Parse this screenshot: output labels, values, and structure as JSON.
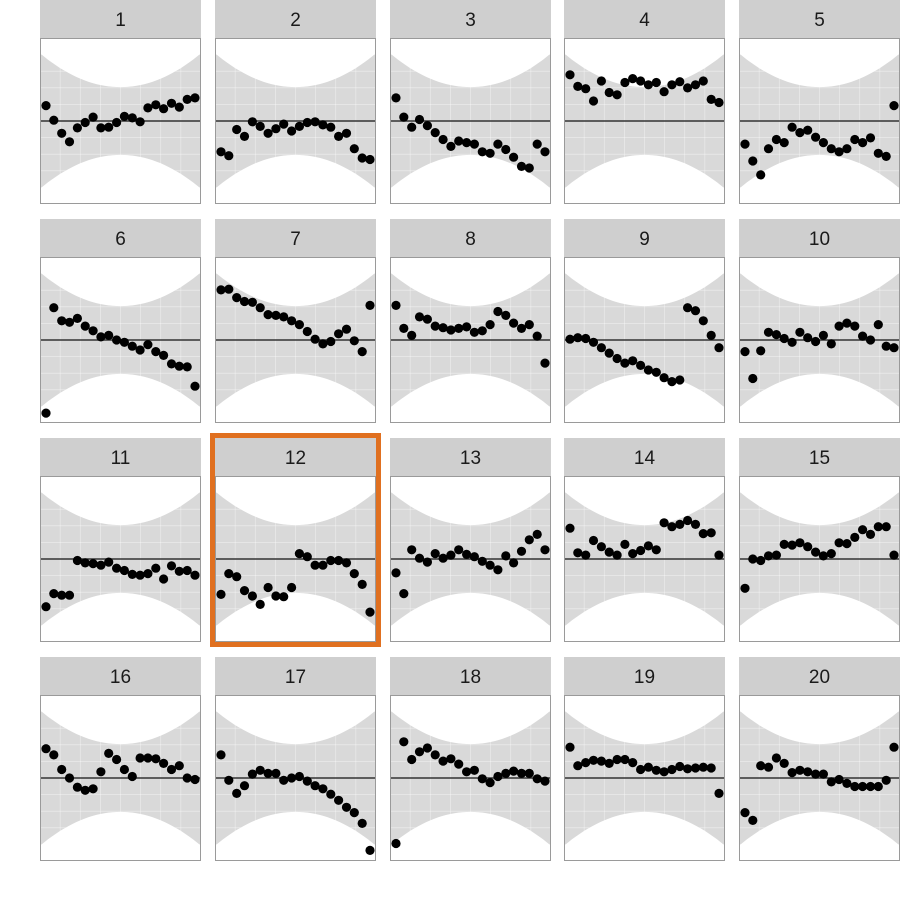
{
  "colors": {
    "strip": "#cfcfcf",
    "band": "#d9d9d9",
    "grid": "#ebebeb",
    "point": "#000000",
    "highlight": "#e07020"
  },
  "chart_data": {
    "type": "scatter",
    "layout": "facet-grid 4 rows x 5 columns",
    "highlighted_panel": "12",
    "grid": true,
    "reference_line": 0,
    "ylim": [
      -1,
      1
    ],
    "panels": [
      {
        "label": "1",
        "x": [
          0,
          1,
          2,
          3,
          4,
          5,
          6,
          7,
          8,
          9,
          10,
          11,
          12,
          13,
          14,
          15,
          16,
          17,
          18,
          19
        ],
        "y": [
          0.2,
          0.01,
          -0.16,
          -0.27,
          -0.09,
          -0.02,
          0.05,
          -0.09,
          -0.08,
          -0.02,
          0.06,
          0.04,
          -0.01,
          0.17,
          0.21,
          0.16,
          0.23,
          0.18,
          0.28,
          0.3
        ]
      },
      {
        "label": "2",
        "x": [
          0,
          1,
          2,
          3,
          4,
          5,
          6,
          7,
          8,
          9,
          10,
          11,
          12,
          13,
          14,
          15,
          16,
          17,
          18,
          19
        ],
        "y": [
          -0.4,
          -0.45,
          -0.11,
          -0.2,
          -0.01,
          -0.07,
          -0.16,
          -0.1,
          -0.04,
          -0.13,
          -0.07,
          -0.02,
          -0.01,
          -0.05,
          -0.08,
          -0.2,
          -0.16,
          -0.36,
          -0.48,
          -0.5
        ]
      },
      {
        "label": "3",
        "x": [
          0,
          1,
          2,
          3,
          4,
          5,
          6,
          7,
          8,
          9,
          10,
          11,
          12,
          13,
          14,
          15,
          16,
          17,
          18,
          19
        ],
        "y": [
          0.3,
          0.05,
          -0.08,
          0.02,
          -0.06,
          -0.15,
          -0.24,
          -0.33,
          -0.26,
          -0.28,
          -0.3,
          -0.4,
          -0.42,
          -0.3,
          -0.37,
          -0.47,
          -0.59,
          -0.61,
          -0.3,
          -0.4
        ]
      },
      {
        "label": "4",
        "x": [
          0,
          1,
          2,
          3,
          4,
          5,
          6,
          7,
          8,
          9,
          10,
          11,
          12,
          13,
          14,
          15,
          16,
          17,
          18,
          19
        ],
        "y": [
          0.6,
          0.45,
          0.42,
          0.26,
          0.52,
          0.37,
          0.34,
          0.5,
          0.55,
          0.52,
          0.47,
          0.5,
          0.38,
          0.47,
          0.51,
          0.43,
          0.47,
          0.52,
          0.28,
          0.24
        ]
      },
      {
        "label": "5",
        "x": [
          0,
          1,
          2,
          3,
          4,
          5,
          6,
          7,
          8,
          9,
          10,
          11,
          12,
          13,
          14,
          15,
          16,
          17,
          18,
          19
        ],
        "y": [
          -0.3,
          -0.52,
          -0.7,
          -0.36,
          -0.24,
          -0.28,
          -0.08,
          -0.15,
          -0.12,
          -0.21,
          -0.28,
          -0.36,
          -0.4,
          -0.36,
          -0.24,
          -0.28,
          -0.22,
          -0.42,
          -0.46,
          0.2
        ]
      },
      {
        "label": "6",
        "x": [
          0,
          1,
          2,
          3,
          4,
          5,
          6,
          7,
          8,
          9,
          10,
          11,
          12,
          13,
          14,
          15,
          16,
          17,
          18,
          19
        ],
        "y": [
          -0.95,
          0.42,
          0.25,
          0.23,
          0.28,
          0.18,
          0.12,
          0.04,
          0.06,
          0.0,
          -0.03,
          -0.08,
          -0.13,
          -0.06,
          -0.15,
          -0.2,
          -0.31,
          -0.34,
          -0.35,
          -0.6
        ]
      },
      {
        "label": "7",
        "x": [
          0,
          1,
          2,
          3,
          4,
          5,
          6,
          7,
          8,
          9,
          10,
          11,
          12,
          13,
          14,
          15,
          16,
          17,
          18,
          19
        ],
        "y": [
          0.65,
          0.66,
          0.55,
          0.5,
          0.49,
          0.42,
          0.33,
          0.32,
          0.3,
          0.25,
          0.2,
          0.11,
          0.01,
          -0.05,
          -0.02,
          0.08,
          0.14,
          -0.01,
          -0.15,
          0.45
        ]
      },
      {
        "label": "8",
        "x": [
          0,
          1,
          2,
          3,
          4,
          5,
          6,
          7,
          8,
          9,
          10,
          11,
          12,
          13,
          14,
          15,
          16,
          17,
          18,
          19
        ],
        "y": [
          0.45,
          0.15,
          0.06,
          0.3,
          0.27,
          0.18,
          0.16,
          0.13,
          0.15,
          0.17,
          0.1,
          0.12,
          0.2,
          0.37,
          0.32,
          0.22,
          0.15,
          0.2,
          0.05,
          -0.3
        ]
      },
      {
        "label": "9",
        "x": [
          0,
          1,
          2,
          3,
          4,
          5,
          6,
          7,
          8,
          9,
          10,
          11,
          12,
          13,
          14,
          15,
          16,
          17,
          18,
          19
        ],
        "y": [
          0.01,
          0.03,
          0.02,
          -0.03,
          -0.1,
          -0.17,
          -0.24,
          -0.3,
          -0.27,
          -0.33,
          -0.39,
          -0.42,
          -0.49,
          -0.54,
          -0.52,
          0.42,
          0.38,
          0.25,
          0.06,
          -0.1
        ]
      },
      {
        "label": "10",
        "x": [
          0,
          1,
          2,
          3,
          4,
          5,
          6,
          7,
          8,
          9,
          10,
          11,
          12,
          13,
          14,
          15,
          16,
          17,
          18,
          19
        ],
        "y": [
          -0.15,
          -0.5,
          -0.14,
          0.1,
          0.07,
          0.02,
          -0.03,
          0.1,
          0.03,
          -0.02,
          0.06,
          -0.05,
          0.18,
          0.22,
          0.18,
          0.05,
          0.0,
          0.2,
          -0.08,
          -0.1
        ]
      },
      {
        "label": "11",
        "x": [
          0,
          1,
          2,
          3,
          4,
          5,
          6,
          7,
          8,
          9,
          10,
          11,
          12,
          13,
          14,
          15,
          16,
          17,
          18,
          19
        ],
        "y": [
          -0.62,
          -0.45,
          -0.47,
          -0.47,
          -0.02,
          -0.05,
          -0.06,
          -0.08,
          -0.04,
          -0.12,
          -0.15,
          -0.2,
          -0.21,
          -0.19,
          -0.12,
          -0.26,
          -0.09,
          -0.16,
          -0.15,
          -0.21
        ]
      },
      {
        "label": "12",
        "x": [
          0,
          1,
          2,
          3,
          4,
          5,
          6,
          7,
          8,
          9,
          10,
          11,
          12,
          13,
          14,
          15,
          16,
          17,
          18,
          19
        ],
        "y": [
          -0.46,
          -0.19,
          -0.23,
          -0.41,
          -0.48,
          -0.59,
          -0.37,
          -0.48,
          -0.49,
          -0.37,
          0.07,
          0.03,
          -0.08,
          -0.08,
          -0.02,
          -0.02,
          -0.05,
          -0.19,
          -0.33,
          -0.69
        ]
      },
      {
        "label": "13",
        "x": [
          0,
          1,
          2,
          3,
          4,
          5,
          6,
          7,
          8,
          9,
          10,
          11,
          12,
          13,
          14,
          15,
          16,
          17,
          18,
          19
        ],
        "y": [
          -0.18,
          -0.45,
          0.12,
          0.01,
          -0.04,
          0.07,
          0.01,
          0.05,
          0.12,
          0.06,
          0.03,
          -0.03,
          -0.08,
          -0.14,
          0.04,
          -0.05,
          0.1,
          0.25,
          0.32,
          0.12
        ]
      },
      {
        "label": "14",
        "x": [
          0,
          1,
          2,
          3,
          4,
          5,
          6,
          7,
          8,
          9,
          10,
          11,
          12,
          13,
          14,
          15,
          16,
          17,
          18,
          19
        ],
        "y": [
          0.4,
          0.08,
          0.05,
          0.24,
          0.16,
          0.09,
          0.05,
          0.19,
          0.07,
          0.11,
          0.17,
          0.12,
          0.47,
          0.42,
          0.45,
          0.5,
          0.45,
          0.33,
          0.34,
          0.05
        ]
      },
      {
        "label": "15",
        "x": [
          0,
          1,
          2,
          3,
          4,
          5,
          6,
          7,
          8,
          9,
          10,
          11,
          12,
          13,
          14,
          15,
          16,
          17,
          18,
          19
        ],
        "y": [
          -0.38,
          0.0,
          -0.02,
          0.04,
          0.05,
          0.19,
          0.18,
          0.21,
          0.16,
          0.09,
          0.04,
          0.07,
          0.21,
          0.2,
          0.28,
          0.38,
          0.32,
          0.42,
          0.42,
          0.05
        ]
      },
      {
        "label": "16",
        "x": [
          0,
          1,
          2,
          3,
          4,
          5,
          6,
          7,
          8,
          9,
          10,
          11,
          12,
          13,
          14,
          15,
          16,
          17,
          18,
          19
        ],
        "y": [
          0.38,
          0.3,
          0.11,
          0.0,
          -0.12,
          -0.16,
          -0.14,
          0.08,
          0.32,
          0.24,
          0.11,
          0.02,
          0.26,
          0.26,
          0.25,
          0.19,
          0.11,
          0.16,
          0.0,
          -0.02
        ]
      },
      {
        "label": "17",
        "x": [
          0,
          1,
          2,
          3,
          4,
          5,
          6,
          7,
          8,
          9,
          10,
          11,
          12,
          13,
          14,
          15,
          16,
          17,
          18,
          19
        ],
        "y": [
          0.3,
          -0.03,
          -0.2,
          -0.1,
          0.05,
          0.1,
          0.06,
          0.06,
          -0.03,
          0.0,
          0.02,
          -0.04,
          -0.1,
          -0.14,
          -0.21,
          -0.29,
          -0.38,
          -0.45,
          -0.59,
          -0.94
        ]
      },
      {
        "label": "18",
        "x": [
          0,
          1,
          2,
          3,
          4,
          5,
          6,
          7,
          8,
          9,
          10,
          11,
          12,
          13,
          14,
          15,
          16,
          17,
          18,
          19
        ],
        "y": [
          -0.85,
          0.47,
          0.24,
          0.34,
          0.39,
          0.3,
          0.22,
          0.25,
          0.18,
          0.08,
          0.1,
          -0.01,
          -0.06,
          0.02,
          0.06,
          0.09,
          0.06,
          0.06,
          -0.01,
          -0.04
        ]
      },
      {
        "label": "19",
        "x": [
          0,
          1,
          2,
          3,
          4,
          5,
          6,
          7,
          8,
          9,
          10,
          11,
          12,
          13,
          14,
          15,
          16,
          17,
          18,
          19
        ],
        "y": [
          0.4,
          0.16,
          0.2,
          0.23,
          0.22,
          0.19,
          0.24,
          0.24,
          0.2,
          0.11,
          0.14,
          0.1,
          0.08,
          0.11,
          0.15,
          0.12,
          0.13,
          0.14,
          0.13,
          -0.2
        ]
      },
      {
        "label": "20",
        "x": [
          0,
          1,
          2,
          3,
          4,
          5,
          6,
          7,
          8,
          9,
          10,
          11,
          12,
          13,
          14,
          15,
          16,
          17,
          18,
          19
        ],
        "y": [
          -0.45,
          -0.55,
          0.16,
          0.14,
          0.26,
          0.19,
          0.07,
          0.1,
          0.08,
          0.05,
          0.05,
          -0.05,
          -0.02,
          -0.07,
          -0.11,
          -0.11,
          -0.11,
          -0.11,
          -0.03,
          0.4
        ]
      }
    ]
  }
}
